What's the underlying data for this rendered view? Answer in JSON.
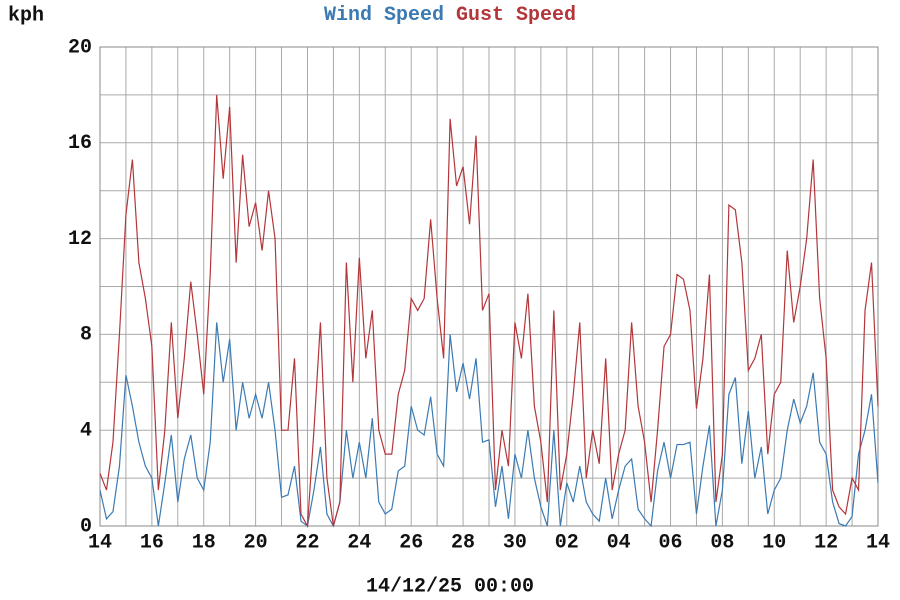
{
  "chart_data": {
    "type": "line",
    "ylabel": "kph",
    "xlabel": "14/12/25 00:00",
    "x": [
      0,
      0.25,
      0.5,
      0.75,
      1,
      1.25,
      1.5,
      1.75,
      2,
      2.25,
      2.5,
      2.75,
      3,
      3.25,
      3.5,
      3.75,
      4,
      4.25,
      4.5,
      4.75,
      5,
      5.25,
      5.5,
      5.75,
      6,
      6.25,
      6.5,
      6.75,
      7,
      7.25,
      7.5,
      7.75,
      8,
      8.25,
      8.5,
      8.75,
      9,
      9.25,
      9.5,
      9.75,
      10,
      10.25,
      10.5,
      10.75,
      11,
      11.25,
      11.5,
      11.75,
      12,
      12.25,
      12.5,
      12.75,
      13,
      13.25,
      13.5,
      13.75,
      14,
      14.25,
      14.5,
      14.75,
      15,
      15.25,
      15.5,
      15.75,
      16,
      16.25,
      16.5,
      16.75,
      17,
      17.25,
      17.5,
      17.75,
      18,
      18.25,
      18.5,
      18.75,
      19,
      19.25,
      19.5,
      19.75,
      20,
      20.25,
      20.5,
      20.75,
      21,
      21.25,
      21.5,
      21.75,
      22,
      22.25,
      22.5,
      22.75,
      23,
      23.25,
      23.5,
      23.75,
      24,
      24.25,
      24.5,
      24.75,
      25,
      25.25,
      25.5,
      25.75,
      26,
      26.25,
      26.5,
      26.75,
      27,
      27.25,
      27.5,
      27.75,
      28,
      28.25,
      28.5,
      28.75,
      29,
      29.25,
      29.5,
      29.75,
      30
    ],
    "series": [
      {
        "name": "Wind Speed",
        "color": "#3b7ab3",
        "values": [
          1.5,
          0.3,
          0.6,
          2.5,
          6.3,
          5,
          3.5,
          2.5,
          2,
          0,
          1.8,
          3.8,
          1,
          2.8,
          3.8,
          2,
          1.5,
          3.5,
          8.5,
          6,
          7.8,
          4,
          6,
          4.5,
          5.5,
          4.5,
          6,
          4,
          1.2,
          1.3,
          2.5,
          0.2,
          0,
          1.5,
          3.3,
          0.5,
          0,
          1,
          4,
          2,
          3.5,
          2,
          4.5,
          1,
          0.5,
          0.7,
          2.3,
          2.5,
          5,
          4,
          3.8,
          5.4,
          3,
          2.5,
          8,
          5.6,
          6.8,
          5.3,
          7,
          3.5,
          3.6,
          0.8,
          2.5,
          0.3,
          3,
          2,
          4,
          2,
          0.8,
          0,
          4,
          0,
          1.8,
          1,
          2.5,
          1,
          0.5,
          0.2,
          2,
          0.3,
          1.5,
          2.5,
          2.8,
          0.7,
          0.3,
          0,
          2.3,
          3.5,
          2,
          3.4,
          3.4,
          3.5,
          0.5,
          2.5,
          4.2,
          0,
          1.5,
          5.5,
          6.2,
          2.6,
          4.8,
          2,
          3.3,
          0.5,
          1.5,
          2,
          4,
          5.3,
          4.3,
          5,
          6.4,
          3.5,
          3,
          1,
          0.1,
          0,
          0.4,
          3,
          4,
          5.5,
          1.8
        ]
      },
      {
        "name": "Gust Speed",
        "color": "#b3363a",
        "values": [
          2.2,
          1.5,
          3.5,
          8,
          13,
          15.3,
          11,
          9.5,
          7.5,
          1.5,
          4,
          8.5,
          4.5,
          7,
          10.2,
          8,
          5.5,
          10.5,
          18,
          14.5,
          17.5,
          11,
          15.5,
          12.5,
          13.5,
          11.5,
          14,
          12,
          4,
          4,
          7,
          0.5,
          0,
          4,
          8.5,
          2,
          0,
          1,
          11,
          6,
          11.2,
          7,
          9,
          4,
          3,
          3,
          5.5,
          6.5,
          9.5,
          9,
          9.5,
          12.8,
          9.5,
          7,
          17,
          14.2,
          15,
          12.6,
          16.3,
          9,
          9.7,
          1.5,
          4,
          2.5,
          8.5,
          7,
          9.7,
          5,
          3.5,
          1,
          9,
          1.5,
          3,
          5.5,
          8.5,
          2,
          4,
          2.6,
          7,
          1.5,
          3,
          4,
          8.5,
          5,
          3.5,
          1,
          4,
          7.5,
          8,
          10.5,
          10.3,
          9,
          4.9,
          7,
          10.5,
          1,
          3,
          13.4,
          13.2,
          11,
          6.5,
          7,
          8,
          3,
          5.5,
          6,
          11.5,
          8.5,
          10,
          12,
          15.3,
          9.5,
          7,
          1.5,
          0.8,
          0.5,
          2,
          1.5,
          9,
          11,
          5
        ]
      }
    ],
    "xlim": [
      0,
      30
    ],
    "xticks": [
      {
        "value": 0,
        "label": "14"
      },
      {
        "value": 2,
        "label": "16"
      },
      {
        "value": 4,
        "label": "18"
      },
      {
        "value": 6,
        "label": "20"
      },
      {
        "value": 8,
        "label": "22"
      },
      {
        "value": 10,
        "label": "24"
      },
      {
        "value": 12,
        "label": "26"
      },
      {
        "value": 14,
        "label": "28"
      },
      {
        "value": 16,
        "label": "30"
      },
      {
        "value": 18,
        "label": "02"
      },
      {
        "value": 20,
        "label": "04"
      },
      {
        "value": 22,
        "label": "06"
      },
      {
        "value": 24,
        "label": "08"
      },
      {
        "value": 26,
        "label": "10"
      },
      {
        "value": 28,
        "label": "12"
      },
      {
        "value": 30,
        "label": "14"
      }
    ],
    "xminor": [
      1,
      3,
      5,
      7,
      9,
      11,
      13,
      15,
      17,
      19,
      21,
      23,
      25,
      27,
      29
    ],
    "ylim": [
      0,
      20
    ],
    "yticks": [
      0,
      4,
      8,
      12,
      16,
      20
    ],
    "yminor": [
      2,
      6,
      10,
      14,
      18
    ],
    "grid": true
  }
}
